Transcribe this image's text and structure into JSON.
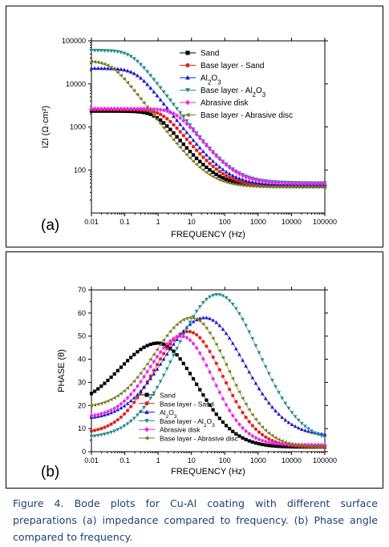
{
  "caption": "Figure 4. Bode plots for Cu-Al coating with different surface preparations (a) impedance compared to frequency. (b) Phase angle compared to frequency.",
  "chart_data": [
    {
      "type": "scatter",
      "panel_label": "(a)",
      "xlabel": "FREQUENCY (Hz)",
      "ylabel": "IZI (Ω·cm²)",
      "xscale": "log",
      "yscale": "log",
      "xlim": [
        0.01,
        100000
      ],
      "ylim": [
        10,
        100000
      ],
      "x_ticks": [
        "0.01",
        "0.1",
        "1",
        "10",
        "100",
        "1000",
        "10000",
        "100000"
      ],
      "y_ticks": [
        "100",
        "1000",
        "10000",
        "100000"
      ],
      "legend_position": "top-right",
      "series": [
        {
          "name": "Sand",
          "color": "#000000",
          "marker": "square",
          "model": {
            "type": "impedance",
            "Rs": 42,
            "Rp": 2300,
            "fc": 0.9
          }
        },
        {
          "name": "Base layer - Sand",
          "color": "#e3201b",
          "marker": "circle",
          "model": {
            "type": "impedance",
            "Rs": 42,
            "Rp": 2500,
            "fc": 1.4
          }
        },
        {
          "name": "Al2O3",
          "color": "#1a1acc",
          "marker": "triangle-up",
          "model": {
            "type": "impedance",
            "Rs": 45,
            "Rp": 23000,
            "fc": 0.22
          }
        },
        {
          "name": "Base layer - Al2O3",
          "color": "#1f8a8a",
          "marker": "triangle-down",
          "model": {
            "type": "impedance",
            "Rs": 50,
            "Rp": 60000,
            "fc": 0.16
          }
        },
        {
          "name": "Abrasive disk",
          "color": "#ee22ee",
          "marker": "diamond",
          "model": {
            "type": "impedance",
            "Rs": 48,
            "Rp": 2600,
            "fc": 3.5
          }
        },
        {
          "name": "Base layer - Abrasive disc",
          "color": "#7a7a20",
          "marker": "triangle-left",
          "model": {
            "type": "impedance",
            "Rs": 40,
            "Rp": 34000,
            "fc": 0.04
          }
        }
      ]
    },
    {
      "type": "scatter",
      "panel_label": "(b)",
      "xlabel": "FREQUENCY (Hz)",
      "ylabel": "PHASE (θ)",
      "xscale": "log",
      "xlim": [
        0.01,
        100000
      ],
      "ylim": [
        0,
        70
      ],
      "x_ticks": [
        "0.01",
        "0.1",
        "1",
        "10",
        "100",
        "1000",
        "10000",
        "100000"
      ],
      "y_ticks": [
        "0",
        "10",
        "20",
        "30",
        "40",
        "50",
        "60",
        "70"
      ],
      "legend_position": "bottom-left",
      "series": [
        {
          "name": "Sand",
          "color": "#000000",
          "marker": "square",
          "model": {
            "type": "phase",
            "base_lo": 19,
            "peak": 47,
            "f_peak": 1.0,
            "width": 1.15,
            "base_hi": 2
          }
        },
        {
          "name": "Base layer - Sand",
          "color": "#e3201b",
          "marker": "circle",
          "model": {
            "type": "phase",
            "base_lo": 8,
            "peak": 52,
            "f_peak": 8,
            "width": 1.05,
            "base_hi": 2
          }
        },
        {
          "name": "Al2O3",
          "color": "#1a1acc",
          "marker": "triangle-up",
          "model": {
            "type": "phase",
            "base_lo": 14,
            "peak": 58,
            "f_peak": 25,
            "width": 1.2,
            "base_hi": 7
          }
        },
        {
          "name": "Base layer - Al2O3",
          "color": "#1f8a8a",
          "marker": "triangle-down",
          "model": {
            "type": "phase",
            "base_lo": 6,
            "peak": 68,
            "f_peak": 60,
            "width": 1.25,
            "base_hi": 4
          }
        },
        {
          "name": "Abrasive disk",
          "color": "#ee22ee",
          "marker": "diamond",
          "model": {
            "type": "phase",
            "base_lo": 15,
            "peak": 50,
            "f_peak": 5,
            "width": 0.95,
            "base_hi": 3
          }
        },
        {
          "name": "Base layer - Abrasive disc",
          "color": "#7a7a20",
          "marker": "triangle-left",
          "model": {
            "type": "phase",
            "base_lo": 19,
            "peak": 58,
            "f_peak": 10,
            "width": 1.1,
            "base_hi": 2
          }
        }
      ]
    }
  ]
}
